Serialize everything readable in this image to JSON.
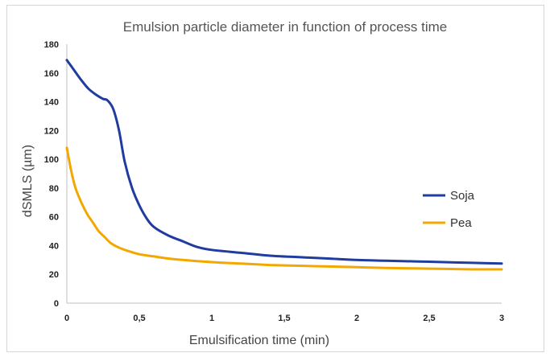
{
  "chart_data": {
    "type": "line",
    "title": "Emulsion particle diameter in function of process time",
    "xlabel": "Emulsification time (min)",
    "ylabel": "dSMLS (µm)",
    "xlim": [
      0,
      3
    ],
    "ylim": [
      0,
      180
    ],
    "xticks": [
      0,
      0.5,
      1,
      1.5,
      2,
      2.5,
      3
    ],
    "xtick_labels": [
      "0",
      "0,5",
      "1",
      "1,5",
      "2",
      "2,5",
      "3"
    ],
    "yticks": [
      0,
      20,
      40,
      60,
      80,
      100,
      120,
      140,
      160,
      180
    ],
    "ytick_labels": [
      "0",
      "20",
      "40",
      "60",
      "80",
      "100",
      "120",
      "140",
      "160",
      "180"
    ],
    "grid": false,
    "legend_position": "right",
    "series": [
      {
        "name": "Soja",
        "color": "#1f3c9e",
        "x": [
          0,
          0.05,
          0.1,
          0.15,
          0.2,
          0.25,
          0.28,
          0.32,
          0.36,
          0.4,
          0.45,
          0.5,
          0.55,
          0.6,
          0.7,
          0.8,
          0.9,
          1.0,
          1.2,
          1.4,
          1.6,
          1.8,
          2.0,
          2.2,
          2.4,
          2.6,
          2.8,
          3.0
        ],
        "values": [
          169,
          162,
          155,
          149,
          145,
          142,
          141,
          135,
          120,
          98,
          80,
          68,
          59,
          53,
          47,
          43,
          39,
          37,
          35,
          33,
          32,
          31,
          30,
          29.5,
          29,
          28.5,
          28,
          27.5
        ]
      },
      {
        "name": "Pea",
        "color": "#f2a800",
        "x": [
          0,
          0.03,
          0.06,
          0.1,
          0.14,
          0.18,
          0.22,
          0.26,
          0.3,
          0.35,
          0.4,
          0.5,
          0.6,
          0.7,
          0.8,
          1.0,
          1.2,
          1.4,
          1.6,
          1.8,
          2.0,
          2.2,
          2.5,
          2.8,
          3.0
        ],
        "values": [
          108,
          92,
          80,
          70,
          62,
          56,
          50,
          46,
          42,
          39,
          37,
          34,
          32.5,
          31,
          30,
          28.5,
          27.5,
          26.5,
          26,
          25.5,
          25,
          24.5,
          24,
          23.5,
          23.5
        ]
      }
    ]
  }
}
